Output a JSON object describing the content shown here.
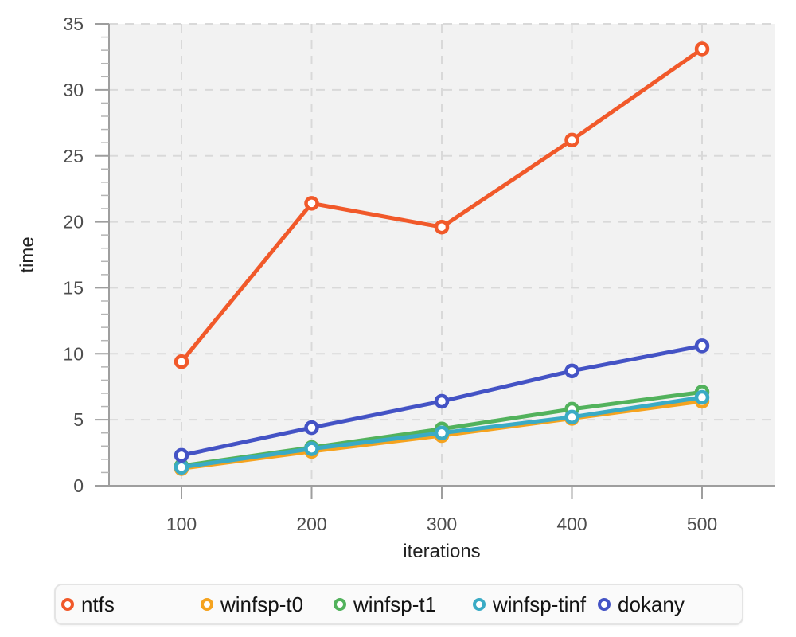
{
  "chart_data": {
    "type": "line",
    "x": [
      100,
      200,
      300,
      400,
      500
    ],
    "series": [
      {
        "name": "ntfs",
        "color": "#f1592a",
        "values": [
          9.4,
          21.4,
          19.6,
          26.2,
          33.1
        ]
      },
      {
        "name": "winfsp-t0",
        "color": "#f5a31f",
        "values": [
          1.3,
          2.6,
          3.8,
          5.1,
          6.4
        ]
      },
      {
        "name": "winfsp-t1",
        "color": "#52b25c",
        "values": [
          1.5,
          2.9,
          4.3,
          5.8,
          7.1
        ]
      },
      {
        "name": "winfsp-tinf",
        "color": "#3aabc5",
        "values": [
          1.4,
          2.8,
          4.0,
          5.2,
          6.7
        ]
      },
      {
        "name": "dokany",
        "color": "#4453c5",
        "values": [
          2.3,
          4.4,
          6.4,
          8.7,
          10.6
        ]
      }
    ],
    "xlabel": "iterations",
    "ylabel": "time",
    "ylim": [
      0,
      35
    ],
    "y_major_ticks": [
      0,
      5,
      10,
      15,
      20,
      25,
      30,
      35
    ],
    "y_minor_step": 1,
    "x_tick_labels": [
      "100",
      "200",
      "300",
      "400",
      "500"
    ],
    "grid": true,
    "legend_position": "bottom",
    "marker": "open-circle",
    "colors": {
      "plot_background": "#f2f2f2",
      "grid_line": "#d9d9d9",
      "axis_line": "#9e9e9e",
      "tick_text": "#4d4d4d",
      "axis_title_text": "#222222",
      "legend_background": "#fafafa",
      "legend_border": "#e4e4e4"
    }
  }
}
